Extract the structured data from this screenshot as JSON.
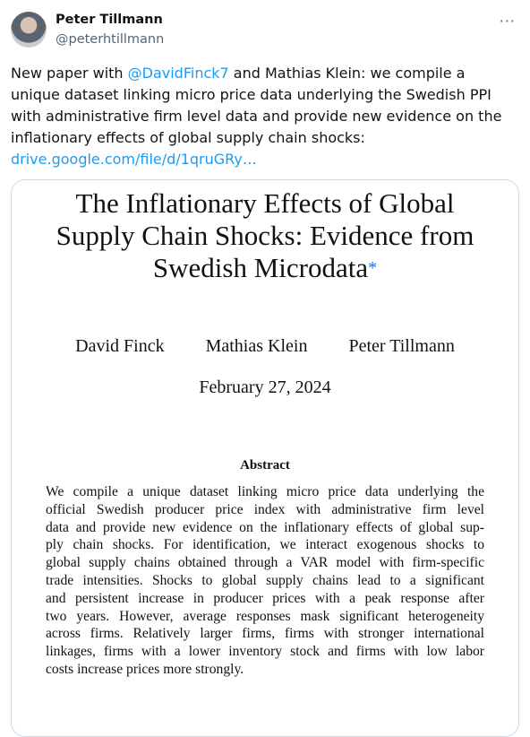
{
  "tweet": {
    "author": {
      "name": "Peter Tillmann",
      "handle": "@peterhtillmann"
    },
    "menu": "···",
    "text": {
      "before_mention": "New paper with ",
      "mention": "@DavidFinck7",
      "after_mention": " and Mathias Klein:  we compile a unique dataset linking micro price data underlying the Swedish PPI with administrative firm level data and provide new evidence on the inflationary effects of global supply chain shocks:",
      "link": "drive.google.com/file/d/1qruGRy…"
    },
    "paper": {
      "title_lines": [
        "The Inflationary Effects of Global",
        "Supply Chain Shocks: Evidence from",
        "Swedish Microdata"
      ],
      "title_mark": "*",
      "authors": [
        "David Finck",
        "Mathias Klein",
        "Peter Tillmann"
      ],
      "date": "February 27, 2024",
      "abstract_heading": "Abstract",
      "abstract_lines": [
        "We compile a unique dataset linking micro price data underlying the",
        "official Swedish producer price index with administrative firm level",
        "data and provide new evidence on the inflationary effects of global sup-",
        "ply chain shocks. For identification, we interact exogenous shocks to",
        "global supply chains obtained through a VAR model with firm-specific",
        "trade intensities. Shocks to global supply chains lead to a significant",
        "and persistent increase in producer prices with a peak response after",
        "two years. However, average responses mask significant heterogeneity",
        "across firms. Relatively larger firms, firms with stronger international",
        "linkages, firms with a lower inventory stock and firms with low labor",
        "costs increase prices more strongly."
      ]
    }
  }
}
